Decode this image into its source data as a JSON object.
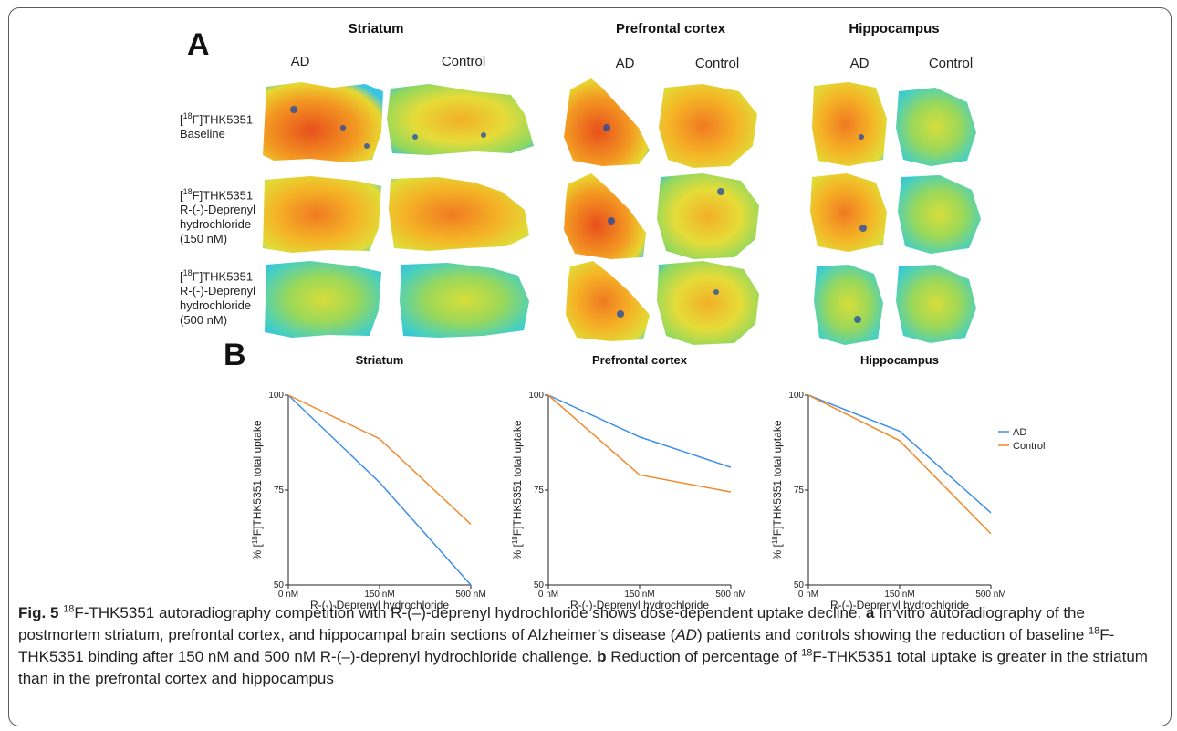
{
  "figure": {
    "panel_a_letter": "A",
    "panel_b_letter": "B",
    "regions": [
      "Striatum",
      "Prefrontal cortex",
      "Hippocampus"
    ],
    "groups": [
      "AD",
      "Control"
    ],
    "rows": [
      {
        "isotope": "18",
        "lines": [
          "F]THK5351",
          "Baseline"
        ]
      },
      {
        "isotope": "18",
        "lines": [
          "F]THK5351",
          "R-(-)-Deprenyl",
          "hydrochloride",
          "(150 nM)"
        ]
      },
      {
        "isotope": "18",
        "lines": [
          "F]THK5351",
          "R-(-)-Deprenyl",
          "hydrochloride",
          "(500 nM)"
        ]
      }
    ]
  },
  "colors": {
    "ad": "#3d8fe8",
    "control": "#f08a2c",
    "tissue_hot": "#e8541e",
    "tissue_warm": "#f6a020",
    "tissue_mid": "#e9d832",
    "tissue_cool": "#6fd46a",
    "tissue_cold": "#2ec3e8"
  },
  "chart_data": [
    {
      "type": "line",
      "title": "Striatum",
      "xlabel": "R-(-)-Deprenyl hydrochloride",
      "ylabel_prefix": "% [",
      "ylabel_isotope": "18",
      "ylabel_suffix": "F]THK5351 total uptake",
      "categories": [
        "0 nM",
        "150 nM",
        "500 nM"
      ],
      "ylim": [
        50,
        100
      ],
      "yticks": [
        50,
        75,
        100
      ],
      "series": [
        {
          "name": "AD",
          "values": [
            100,
            77,
            50
          ]
        },
        {
          "name": "Control",
          "values": [
            100,
            88.5,
            66
          ]
        }
      ],
      "legend": false
    },
    {
      "type": "line",
      "title": "Prefrontal cortex",
      "xlabel": "R-(-)-Deprenyl hydrochloride",
      "ylabel_prefix": "% [",
      "ylabel_isotope": "18",
      "ylabel_suffix": "F]THK5351 total uptake",
      "categories": [
        "0 nM",
        "150 nM",
        "500 nM"
      ],
      "ylim": [
        50,
        100
      ],
      "yticks": [
        50,
        75,
        100
      ],
      "series": [
        {
          "name": "AD",
          "values": [
            100,
            89,
            81
          ]
        },
        {
          "name": "Control",
          "values": [
            100,
            79,
            74.5
          ]
        }
      ],
      "legend": false
    },
    {
      "type": "line",
      "title": "Hippocampus",
      "xlabel": "R-(-)-Deprenyl hydrochloride",
      "ylabel_prefix": "% [",
      "ylabel_isotope": "18",
      "ylabel_suffix": "F]THK5351 total uptake",
      "categories": [
        "0 nM",
        "150 nM",
        "500 nM"
      ],
      "ylim": [
        50,
        100
      ],
      "yticks": [
        50,
        75,
        100
      ],
      "series": [
        {
          "name": "AD",
          "values": [
            100,
            90.5,
            69
          ]
        },
        {
          "name": "Control",
          "values": [
            100,
            88,
            63.5
          ]
        }
      ],
      "legend": true,
      "legend_position": "top-right"
    }
  ],
  "caption": {
    "fig_label": "Fig. 5",
    "t1_sup": "18",
    "t1": "F-THK5351 autoradiography competition with R-(–)-deprenyl hydrochloride shows dose-dependent uptake decline.",
    "a_label": "a",
    "t2": "In vitro autoradiography of the postmortem striatum, prefrontal cortex, and hippocampal brain sections of Alzheimer’s disease (",
    "t2_italic": "AD",
    "t3": ") patients and controls showing the reduction of baseline",
    "t3_sup": "18",
    "t4": "F-THK5351 binding after 150 nM and 500 nM R-(–)-deprenyl hydrochloride challenge.",
    "b_label": "b",
    "t5": "Reduction of percentage of",
    "t5_sup": "18",
    "t6": "F-THK5351 total uptake is greater in the striatum than in the prefrontal cortex and hippocampus"
  }
}
